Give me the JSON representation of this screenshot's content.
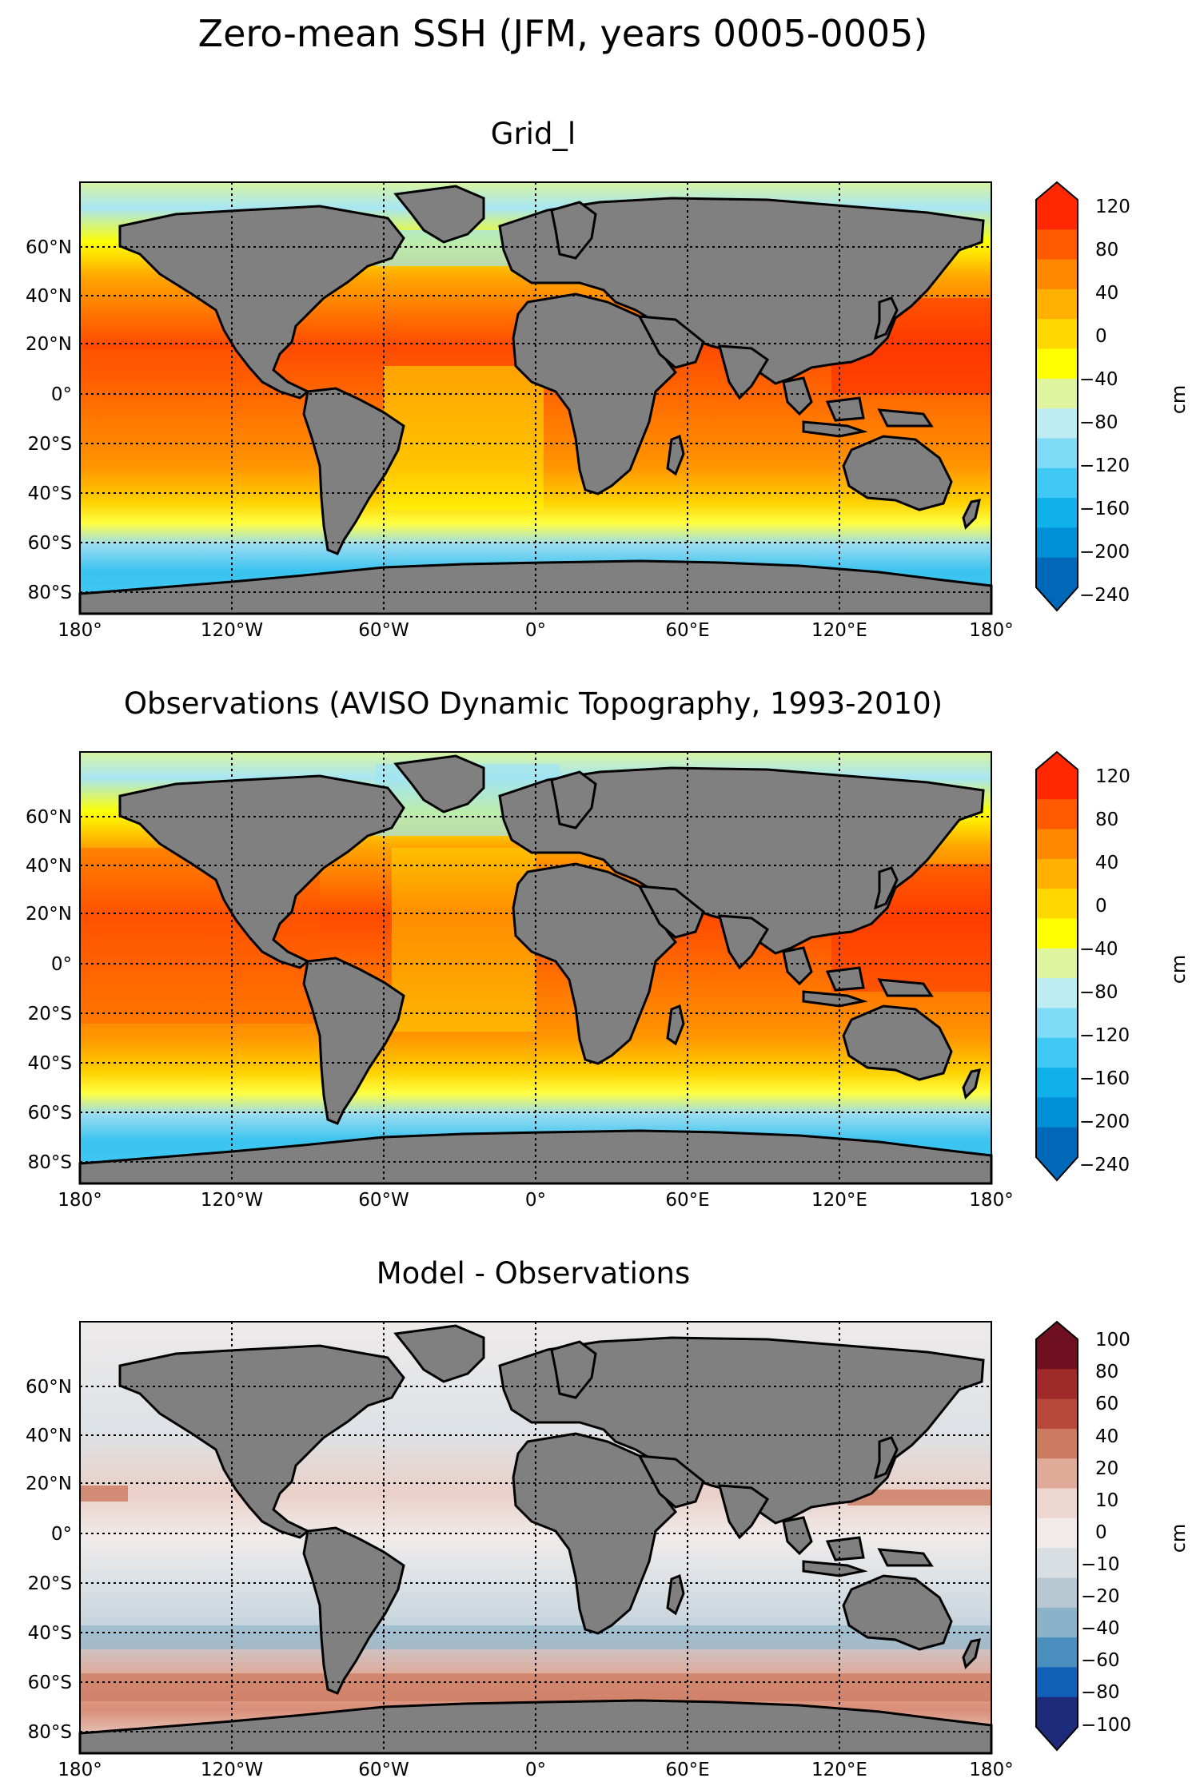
{
  "figure": {
    "title": "Zero-mean SSH (JFM, years 0005-0005)"
  },
  "axes": {
    "lon_ticks": [
      "180°",
      "120°W",
      "60°W",
      "0°",
      "60°E",
      "120°E",
      "180°"
    ],
    "lat_ticks": [
      "60°N",
      "40°N",
      "20°N",
      "0°",
      "20°S",
      "40°S",
      "60°S",
      "80°S"
    ]
  },
  "colors": {
    "land": "#808080",
    "ssh_scale": [
      "#0068b8",
      "#0090d8",
      "#10b0ea",
      "#40c8f4",
      "#80dcf6",
      "#bdecf3",
      "#e0f4a0",
      "#ffff00",
      "#ffd800",
      "#ffb000",
      "#ff8800",
      "#ff5a00",
      "#ff2800"
    ],
    "diff_scale": [
      "#1e2a7a",
      "#1060b8",
      "#4a8fbd",
      "#8ab2c8",
      "#b8c8d2",
      "#d9dee2",
      "#f0ebea",
      "#eed6d1",
      "#e0aa98",
      "#cc7a60",
      "#b8483a",
      "#a02a2a",
      "#6e1020"
    ]
  },
  "panels": [
    {
      "title": "Grid_l",
      "colorbar": {
        "ticks": [
          "120",
          "80",
          "40",
          "0",
          "−40",
          "−80",
          "−120",
          "−160",
          "−200",
          "−240"
        ],
        "label": "cm"
      }
    },
    {
      "title": "Observations (AVISO Dynamic Topography, 1993-2010)",
      "colorbar": {
        "ticks": [
          "120",
          "80",
          "40",
          "0",
          "−40",
          "−80",
          "−120",
          "−160",
          "−200",
          "−240"
        ],
        "label": "cm"
      }
    },
    {
      "title": "Model - Observations",
      "colorbar": {
        "ticks": [
          "100",
          "80",
          "60",
          "40",
          "20",
          "10",
          "0",
          "−10",
          "−20",
          "−40",
          "−60",
          "−80",
          "−100"
        ],
        "label": "cm"
      }
    }
  ]
}
